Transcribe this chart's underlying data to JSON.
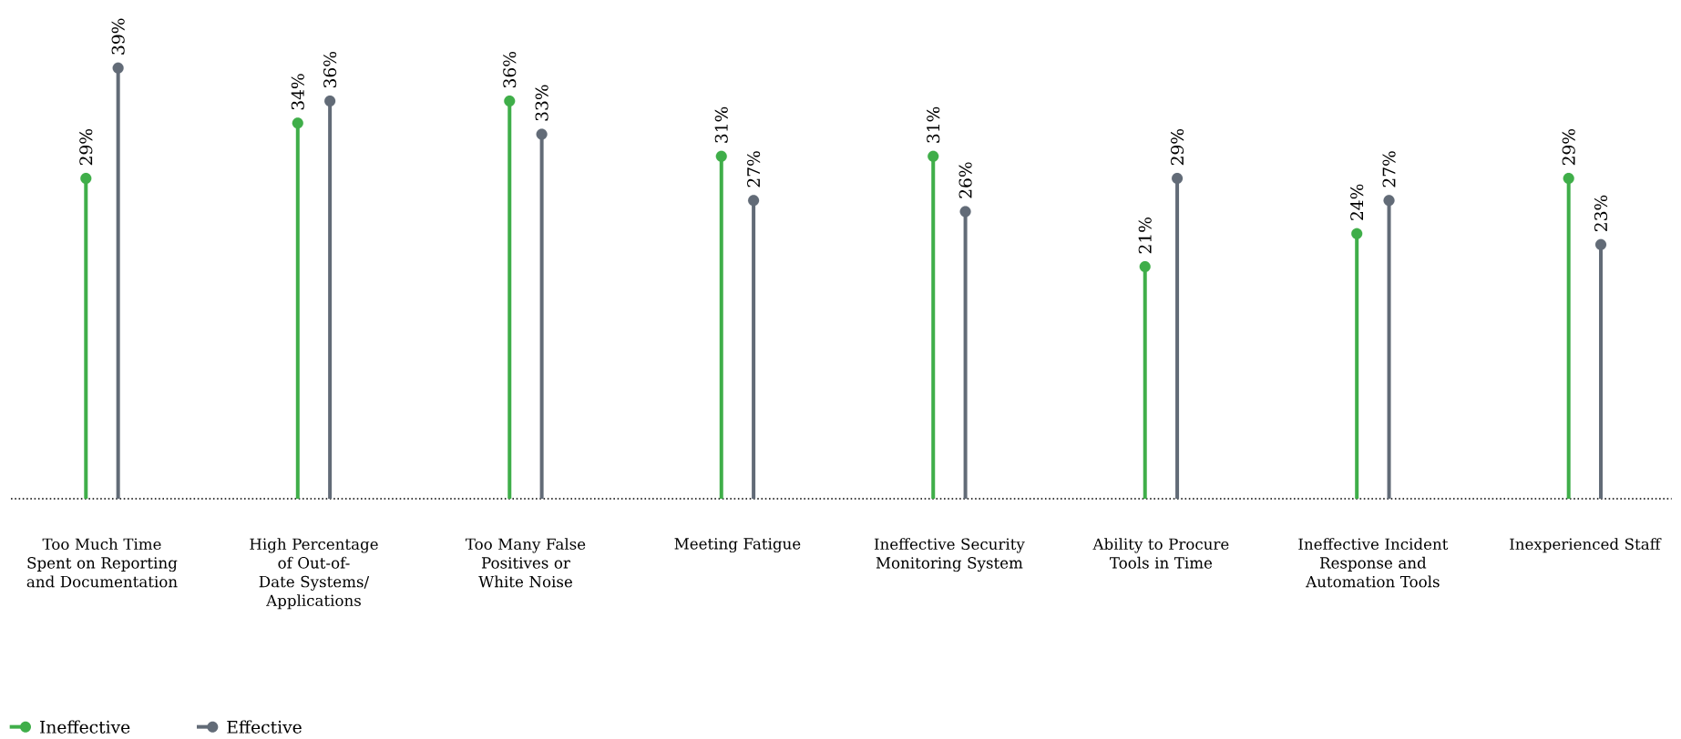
{
  "chart_data": {
    "type": "lollipop",
    "categories": [
      "Too Much Time Spent on Reporting and Documentation",
      "High Percentage of Out-of-Date Systems/ Applications",
      "Too Many False Positives or White Noise",
      "Meeting Fatigue",
      "Ineffective Security Monitoring System",
      "Ability to Procure Tools in Time",
      "Ineffective Incident Response and Automation Tools",
      "Inexperienced Staff"
    ],
    "series": [
      {
        "name": "Ineffective",
        "color": "#3fae49",
        "values": [
          29,
          34,
          36,
          31,
          31,
          21,
          24,
          29
        ],
        "value_labels": [
          "29%",
          "34%",
          "36%",
          "31%",
          "31%",
          "21%",
          "24%",
          "29%"
        ]
      },
      {
        "name": "Effective",
        "color": "#626b77",
        "values": [
          39,
          36,
          33,
          27,
          26,
          29,
          27,
          23
        ],
        "value_labels": [
          "39%",
          "36%",
          "33%",
          "27%",
          "26%",
          "29%",
          "27%",
          "23%"
        ]
      }
    ],
    "legend": "bottom left",
    "marker": "circle"
  }
}
